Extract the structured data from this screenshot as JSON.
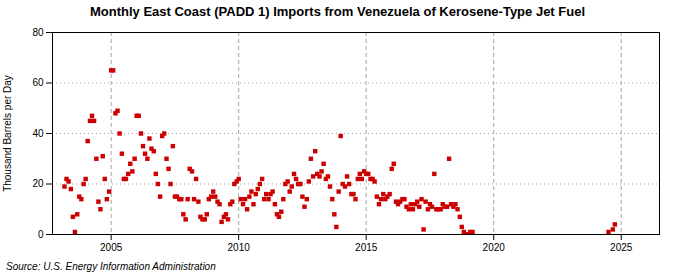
{
  "chart_data": {
    "type": "scatter",
    "title": "Monthly East Coast (PADD 1) Imports from Venezuela of Kerosene-Type Jet Fuel",
    "ylabel": "Thousand Barrels per Day",
    "source": "Source: U.S. Energy Information Administration",
    "color": "#cc0000",
    "marker": "square",
    "grid": true,
    "xlim": [
      2002.7,
      2026.5
    ],
    "ylim": [
      0,
      80
    ],
    "xticks": [
      2005,
      2010,
      2015,
      2020,
      2025
    ],
    "yticks": [
      0,
      20,
      40,
      60,
      80
    ],
    "x": [
      2003.17,
      2003.25,
      2003.33,
      2003.42,
      2003.5,
      2003.58,
      2003.67,
      2003.75,
      2003.83,
      2003.92,
      2004.0,
      2004.08,
      2004.17,
      2004.25,
      2004.33,
      2004.42,
      2004.5,
      2004.58,
      2004.67,
      2004.75,
      2004.83,
      2004.92,
      2005.0,
      2005.08,
      2005.17,
      2005.25,
      2005.33,
      2005.42,
      2005.5,
      2005.58,
      2005.67,
      2005.75,
      2005.83,
      2005.92,
      2006.0,
      2006.08,
      2006.17,
      2006.25,
      2006.33,
      2006.42,
      2006.5,
      2006.58,
      2006.67,
      2006.75,
      2006.83,
      2006.92,
      2007.0,
      2007.08,
      2007.17,
      2007.25,
      2007.33,
      2007.42,
      2007.5,
      2007.58,
      2007.67,
      2007.75,
      2007.83,
      2007.92,
      2008.0,
      2008.08,
      2008.17,
      2008.25,
      2008.33,
      2008.42,
      2008.5,
      2008.58,
      2008.67,
      2008.75,
      2008.83,
      2008.92,
      2009.0,
      2009.08,
      2009.17,
      2009.25,
      2009.33,
      2009.42,
      2009.5,
      2009.58,
      2009.67,
      2009.75,
      2009.83,
      2009.92,
      2010.0,
      2010.08,
      2010.17,
      2010.25,
      2010.33,
      2010.42,
      2010.5,
      2010.58,
      2010.67,
      2010.75,
      2010.83,
      2010.92,
      2011.0,
      2011.08,
      2011.17,
      2011.25,
      2011.33,
      2011.42,
      2011.5,
      2011.58,
      2011.67,
      2011.75,
      2011.83,
      2011.92,
      2012.0,
      2012.08,
      2012.17,
      2012.25,
      2012.33,
      2012.42,
      2012.5,
      2012.58,
      2012.67,
      2012.75,
      2012.83,
      2012.92,
      2013.0,
      2013.08,
      2013.17,
      2013.25,
      2013.33,
      2013.42,
      2013.5,
      2013.58,
      2013.67,
      2013.75,
      2013.83,
      2013.92,
      2014.0,
      2014.08,
      2014.17,
      2014.25,
      2014.33,
      2014.42,
      2014.5,
      2014.58,
      2014.67,
      2014.75,
      2014.83,
      2014.92,
      2015.0,
      2015.08,
      2015.17,
      2015.25,
      2015.33,
      2015.42,
      2015.5,
      2015.58,
      2015.67,
      2015.75,
      2015.83,
      2015.92,
      2016.0,
      2016.08,
      2016.17,
      2016.25,
      2016.33,
      2016.42,
      2016.5,
      2016.58,
      2016.67,
      2016.75,
      2016.83,
      2016.92,
      2017.0,
      2017.08,
      2017.17,
      2017.25,
      2017.33,
      2017.42,
      2017.5,
      2017.58,
      2017.67,
      2017.75,
      2017.83,
      2017.92,
      2018.0,
      2018.08,
      2018.17,
      2018.25,
      2018.33,
      2018.42,
      2018.5,
      2018.58,
      2018.67,
      2018.75,
      2018.83,
      2018.92,
      2019.0,
      2019.08,
      2019.17,
      2024.5,
      2024.67,
      2024.75
    ],
    "values": [
      19,
      22,
      21,
      18,
      7,
      1,
      8,
      15,
      14,
      20,
      22,
      37,
      45,
      47,
      45,
      30,
      13,
      10,
      31,
      22,
      14,
      17,
      65,
      65,
      48,
      49,
      40,
      32,
      22,
      22,
      24,
      28,
      25,
      30,
      47,
      47,
      40,
      35,
      32,
      30,
      38,
      34,
      33,
      24,
      20,
      15,
      39,
      40,
      30,
      26,
      20,
      35,
      15,
      15,
      14,
      14,
      8,
      6,
      14,
      26,
      25,
      14,
      22,
      13,
      7,
      6,
      6,
      8,
      14,
      15,
      17,
      15,
      13,
      12,
      5,
      7,
      8,
      6,
      12,
      13,
      20,
      21,
      22,
      14,
      12,
      14,
      10,
      15,
      17,
      12,
      16,
      18,
      20,
      22,
      14,
      16,
      14,
      16,
      17,
      12,
      8,
      7,
      9,
      14,
      20,
      21,
      17,
      19,
      24,
      22,
      20,
      20,
      15,
      11,
      14,
      21,
      30,
      23,
      33,
      24,
      23,
      25,
      28,
      22,
      23,
      19,
      14,
      8,
      3,
      17,
      39,
      20,
      19,
      23,
      20,
      16,
      16,
      14,
      22,
      24,
      22,
      25,
      24,
      24,
      22,
      22,
      21,
      15,
      12,
      14,
      16,
      14,
      15,
      16,
      26,
      28,
      13,
      12,
      13,
      14,
      14,
      11,
      10,
      12,
      10,
      12,
      13,
      11,
      14,
      2,
      13,
      10,
      12,
      11,
      24,
      10,
      10,
      10,
      12,
      11,
      11,
      30,
      12,
      11,
      12,
      10,
      7,
      3,
      1,
      0,
      0,
      1,
      1,
      1,
      2,
      4
    ]
  }
}
